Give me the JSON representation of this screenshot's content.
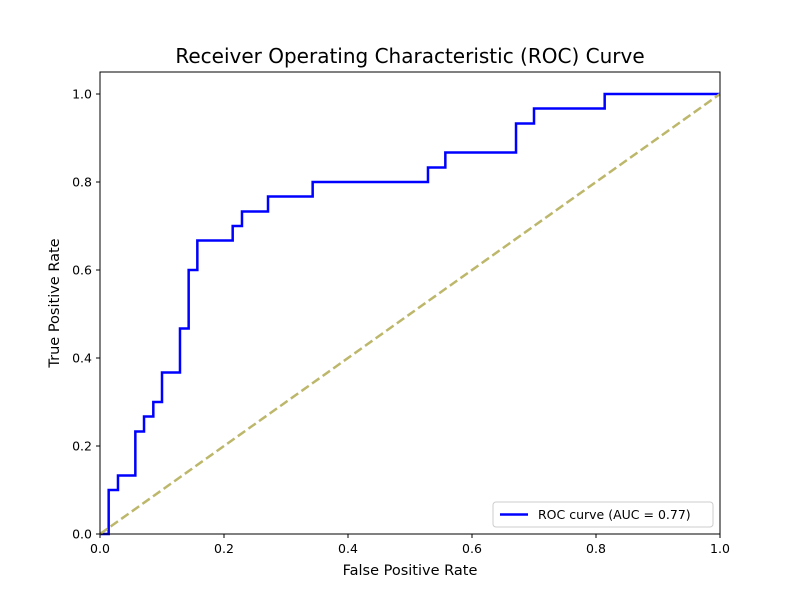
{
  "chart_data": {
    "type": "line",
    "title": "Receiver Operating Characteristic (ROC) Curve",
    "xlabel": "False Positive Rate",
    "ylabel": "True Positive Rate",
    "xlim": [
      0.0,
      1.0
    ],
    "ylim": [
      0.0,
      1.05
    ],
    "xticks": [
      "0.0",
      "0.2",
      "0.4",
      "0.6",
      "0.8",
      "1.0"
    ],
    "yticks": [
      "0.0",
      "0.2",
      "0.4",
      "0.6",
      "0.8",
      "1.0"
    ],
    "grid": false,
    "legend_position": "lower-right",
    "series": [
      {
        "name": "ROC curve (AUC = 0.77)",
        "color": "#0000ff",
        "style": "step",
        "points": [
          [
            0.0,
            0.0
          ],
          [
            0.014,
            0.0
          ],
          [
            0.014,
            0.1
          ],
          [
            0.029,
            0.1
          ],
          [
            0.029,
            0.133
          ],
          [
            0.057,
            0.133
          ],
          [
            0.057,
            0.233
          ],
          [
            0.071,
            0.233
          ],
          [
            0.071,
            0.267
          ],
          [
            0.086,
            0.267
          ],
          [
            0.086,
            0.3
          ],
          [
            0.1,
            0.3
          ],
          [
            0.1,
            0.367
          ],
          [
            0.129,
            0.367
          ],
          [
            0.129,
            0.467
          ],
          [
            0.143,
            0.467
          ],
          [
            0.143,
            0.6
          ],
          [
            0.157,
            0.6
          ],
          [
            0.157,
            0.667
          ],
          [
            0.214,
            0.667
          ],
          [
            0.214,
            0.7
          ],
          [
            0.229,
            0.7
          ],
          [
            0.229,
            0.733
          ],
          [
            0.271,
            0.733
          ],
          [
            0.271,
            0.767
          ],
          [
            0.343,
            0.767
          ],
          [
            0.343,
            0.8
          ],
          [
            0.529,
            0.8
          ],
          [
            0.529,
            0.833
          ],
          [
            0.557,
            0.833
          ],
          [
            0.557,
            0.867
          ],
          [
            0.671,
            0.867
          ],
          [
            0.671,
            0.933
          ],
          [
            0.7,
            0.933
          ],
          [
            0.7,
            0.967
          ],
          [
            0.814,
            0.967
          ],
          [
            0.814,
            1.0
          ],
          [
            1.0,
            1.0
          ]
        ]
      },
      {
        "name": "",
        "color": "#bdb76b",
        "style": "dashed",
        "points": [
          [
            0.0,
            0.0
          ],
          [
            1.0,
            1.0
          ]
        ]
      }
    ]
  }
}
